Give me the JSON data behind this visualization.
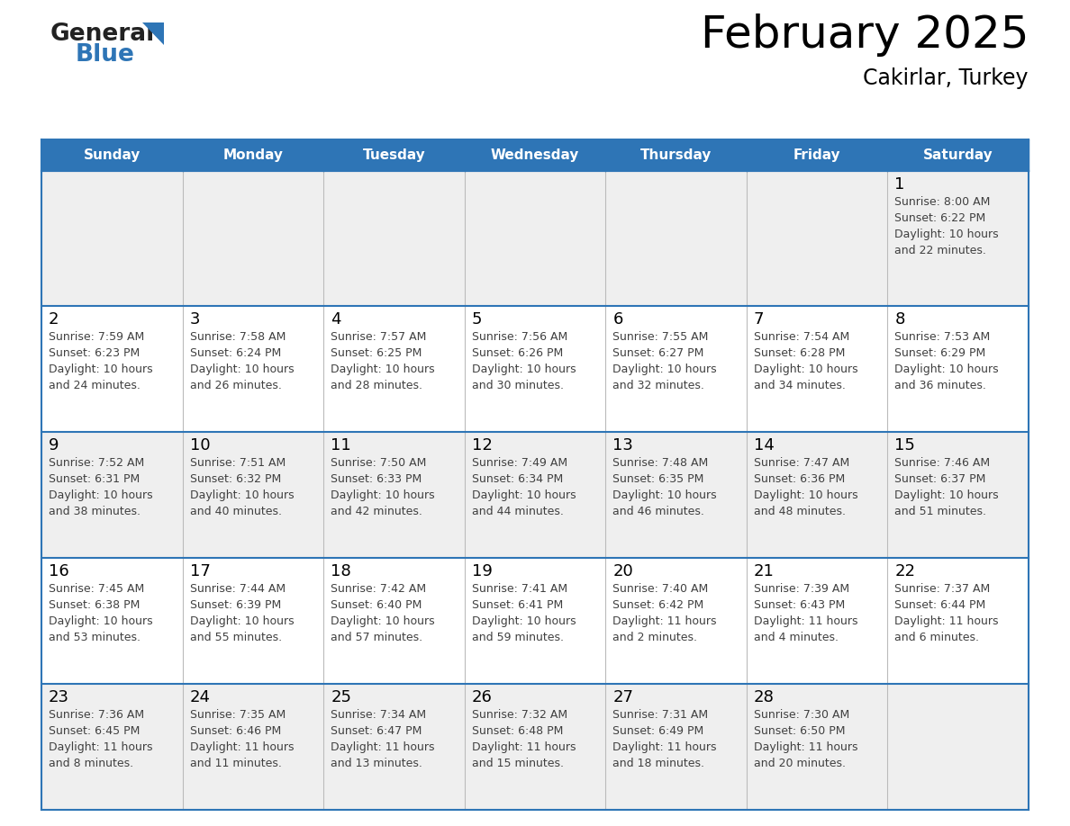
{
  "title": "February 2025",
  "subtitle": "Cakirlar, Turkey",
  "header_color": "#2E75B6",
  "header_text_color": "#FFFFFF",
  "border_color": "#2E75B6",
  "row_bg_colors": [
    "#EFEFEF",
    "#FFFFFF",
    "#EFEFEF",
    "#FFFFFF",
    "#EFEFEF"
  ],
  "day_headers": [
    "Sunday",
    "Monday",
    "Tuesday",
    "Wednesday",
    "Thursday",
    "Friday",
    "Saturday"
  ],
  "title_color": "#000000",
  "subtitle_color": "#000000",
  "day_number_color": "#000000",
  "cell_text_color": "#404040",
  "logo_general_color": "#222222",
  "logo_blue_color": "#2E75B6",
  "logo_triangle_color": "#2E75B6",
  "calendar_data": [
    [
      null,
      null,
      null,
      null,
      null,
      null,
      {
        "day": 1,
        "sunrise": "8:00 AM",
        "sunset": "6:22 PM",
        "daylight": "10 hours\nand 22 minutes."
      }
    ],
    [
      {
        "day": 2,
        "sunrise": "7:59 AM",
        "sunset": "6:23 PM",
        "daylight": "10 hours\nand 24 minutes."
      },
      {
        "day": 3,
        "sunrise": "7:58 AM",
        "sunset": "6:24 PM",
        "daylight": "10 hours\nand 26 minutes."
      },
      {
        "day": 4,
        "sunrise": "7:57 AM",
        "sunset": "6:25 PM",
        "daylight": "10 hours\nand 28 minutes."
      },
      {
        "day": 5,
        "sunrise": "7:56 AM",
        "sunset": "6:26 PM",
        "daylight": "10 hours\nand 30 minutes."
      },
      {
        "day": 6,
        "sunrise": "7:55 AM",
        "sunset": "6:27 PM",
        "daylight": "10 hours\nand 32 minutes."
      },
      {
        "day": 7,
        "sunrise": "7:54 AM",
        "sunset": "6:28 PM",
        "daylight": "10 hours\nand 34 minutes."
      },
      {
        "day": 8,
        "sunrise": "7:53 AM",
        "sunset": "6:29 PM",
        "daylight": "10 hours\nand 36 minutes."
      }
    ],
    [
      {
        "day": 9,
        "sunrise": "7:52 AM",
        "sunset": "6:31 PM",
        "daylight": "10 hours\nand 38 minutes."
      },
      {
        "day": 10,
        "sunrise": "7:51 AM",
        "sunset": "6:32 PM",
        "daylight": "10 hours\nand 40 minutes."
      },
      {
        "day": 11,
        "sunrise": "7:50 AM",
        "sunset": "6:33 PM",
        "daylight": "10 hours\nand 42 minutes."
      },
      {
        "day": 12,
        "sunrise": "7:49 AM",
        "sunset": "6:34 PM",
        "daylight": "10 hours\nand 44 minutes."
      },
      {
        "day": 13,
        "sunrise": "7:48 AM",
        "sunset": "6:35 PM",
        "daylight": "10 hours\nand 46 minutes."
      },
      {
        "day": 14,
        "sunrise": "7:47 AM",
        "sunset": "6:36 PM",
        "daylight": "10 hours\nand 48 minutes."
      },
      {
        "day": 15,
        "sunrise": "7:46 AM",
        "sunset": "6:37 PM",
        "daylight": "10 hours\nand 51 minutes."
      }
    ],
    [
      {
        "day": 16,
        "sunrise": "7:45 AM",
        "sunset": "6:38 PM",
        "daylight": "10 hours\nand 53 minutes."
      },
      {
        "day": 17,
        "sunrise": "7:44 AM",
        "sunset": "6:39 PM",
        "daylight": "10 hours\nand 55 minutes."
      },
      {
        "day": 18,
        "sunrise": "7:42 AM",
        "sunset": "6:40 PM",
        "daylight": "10 hours\nand 57 minutes."
      },
      {
        "day": 19,
        "sunrise": "7:41 AM",
        "sunset": "6:41 PM",
        "daylight": "10 hours\nand 59 minutes."
      },
      {
        "day": 20,
        "sunrise": "7:40 AM",
        "sunset": "6:42 PM",
        "daylight": "11 hours\nand 2 minutes."
      },
      {
        "day": 21,
        "sunrise": "7:39 AM",
        "sunset": "6:43 PM",
        "daylight": "11 hours\nand 4 minutes."
      },
      {
        "day": 22,
        "sunrise": "7:37 AM",
        "sunset": "6:44 PM",
        "daylight": "11 hours\nand 6 minutes."
      }
    ],
    [
      {
        "day": 23,
        "sunrise": "7:36 AM",
        "sunset": "6:45 PM",
        "daylight": "11 hours\nand 8 minutes."
      },
      {
        "day": 24,
        "sunrise": "7:35 AM",
        "sunset": "6:46 PM",
        "daylight": "11 hours\nand 11 minutes."
      },
      {
        "day": 25,
        "sunrise": "7:34 AM",
        "sunset": "6:47 PM",
        "daylight": "11 hours\nand 13 minutes."
      },
      {
        "day": 26,
        "sunrise": "7:32 AM",
        "sunset": "6:48 PM",
        "daylight": "11 hours\nand 15 minutes."
      },
      {
        "day": 27,
        "sunrise": "7:31 AM",
        "sunset": "6:49 PM",
        "daylight": "11 hours\nand 18 minutes."
      },
      {
        "day": 28,
        "sunrise": "7:30 AM",
        "sunset": "6:50 PM",
        "daylight": "11 hours\nand 20 minutes."
      },
      null
    ]
  ]
}
